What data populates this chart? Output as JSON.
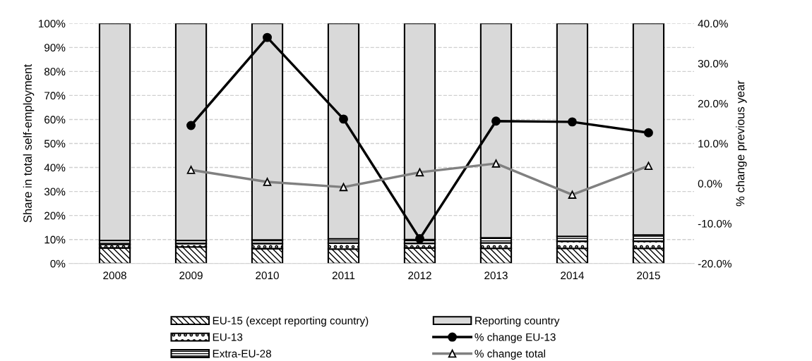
{
  "chart_data": {
    "type": "bar",
    "stacked": true,
    "categories": [
      "2008",
      "2009",
      "2010",
      "2011",
      "2012",
      "2013",
      "2014",
      "2015"
    ],
    "ylabel": "Share in total self-employment",
    "y2label": "% change previous year",
    "ylim": [
      0,
      100
    ],
    "yticks": [
      {
        "value": 0,
        "label": "0%"
      },
      {
        "value": 10,
        "label": "10%"
      },
      {
        "value": 20,
        "label": "20%"
      },
      {
        "value": 30,
        "label": "30%"
      },
      {
        "value": 40,
        "label": "40%"
      },
      {
        "value": 50,
        "label": "50%"
      },
      {
        "value": 60,
        "label": "60%"
      },
      {
        "value": 70,
        "label": "70%"
      },
      {
        "value": 80,
        "label": "80%"
      },
      {
        "value": 90,
        "label": "90%"
      },
      {
        "value": 100,
        "label": "100%"
      }
    ],
    "y2lim": [
      -20,
      40
    ],
    "y2ticks": [
      {
        "value": -20,
        "label": "-20.0%"
      },
      {
        "value": -10,
        "label": "-10.0%"
      },
      {
        "value": 0,
        "label": "0.0%"
      },
      {
        "value": 10,
        "label": "10.0%"
      },
      {
        "value": 20,
        "label": "20.0%"
      },
      {
        "value": 30,
        "label": "30.0%"
      },
      {
        "value": 40,
        "label": "40.0%"
      }
    ],
    "grid": "y",
    "legend": "bottom",
    "series": [
      {
        "name": "EU-15 (except reporting country)",
        "color": "#000000",
        "values": [
          6.5,
          6.9,
          6.2,
          6.0,
          6.5,
          6.3,
          6.3,
          6.3
        ]
      },
      {
        "name": "EU-13",
        "color": "#000000",
        "values": [
          1.5,
          1.4,
          2.1,
          2.5,
          1.9,
          2.3,
          3.0,
          3.0
        ]
      },
      {
        "name": "Extra-EU-28",
        "color": "#000000",
        "values": [
          1.6,
          1.3,
          1.5,
          1.8,
          1.6,
          2.1,
          2.0,
          2.6
        ]
      },
      {
        "name": "Reporting country",
        "color": "#d9d9d9",
        "values": [
          90.4,
          90.4,
          90.2,
          89.7,
          90.0,
          89.3,
          88.7,
          88.1
        ]
      },
      {
        "name": "% change EU-13",
        "type": "line",
        "axis": "y2",
        "color": "#000000",
        "marker": "circle",
        "values": [
          null,
          14.5,
          36.5,
          16.1,
          -13.8,
          15.6,
          15.4,
          12.7
        ]
      },
      {
        "name": "% change total",
        "type": "line",
        "axis": "y2",
        "color": "#808080",
        "marker": "triangle",
        "values": [
          null,
          3.4,
          0.4,
          -0.9,
          2.8,
          5.0,
          -2.8,
          4.4
        ]
      }
    ]
  }
}
